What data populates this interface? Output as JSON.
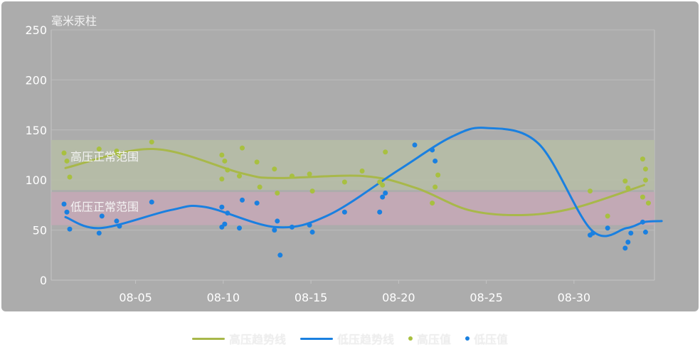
{
  "chart_data": {
    "type": "scatter",
    "ylabel": "毫米汞柱",
    "ylim": [
      0,
      250
    ],
    "yticks": [
      0,
      50,
      100,
      150,
      200,
      250
    ],
    "x_range": [
      "08-01",
      "09-04"
    ],
    "xticks": [
      "08-05",
      "08-10",
      "08-15",
      "08-20",
      "08-25",
      "08-30"
    ],
    "bands": [
      {
        "label": "高压正常范围",
        "from": 90,
        "to": 140,
        "color": "#b6bda6"
      },
      {
        "label": "低压正常范围",
        "from": 55,
        "to": 88,
        "color": "#c6a8b6"
      }
    ],
    "trend_lines": [
      {
        "name": "高压趋势线",
        "color": "#a8b84a",
        "points": [
          [
            "08-01",
            112
          ],
          [
            "08-06",
            131
          ],
          [
            "08-11",
            107
          ],
          [
            "08-13",
            102
          ],
          [
            "08-18",
            104
          ],
          [
            "08-21",
            92
          ],
          [
            "08-24",
            70
          ],
          [
            "08-27",
            65
          ],
          [
            "08-30",
            72
          ],
          [
            "09-03",
            95
          ]
        ]
      },
      {
        "name": "低压趋势线",
        "color": "#1a80e0",
        "points": [
          [
            "08-01",
            63
          ],
          [
            "08-03",
            52
          ],
          [
            "08-07",
            70
          ],
          [
            "08-09",
            73
          ],
          [
            "08-13",
            53
          ],
          [
            "08-16",
            65
          ],
          [
            "08-20",
            110
          ],
          [
            "08-23",
            143
          ],
          [
            "08-25",
            152
          ],
          [
            "08-28",
            136
          ],
          [
            "08-31",
            50
          ],
          [
            "09-02",
            52
          ],
          [
            "09-03",
            58
          ],
          [
            "09-04",
            59
          ]
        ]
      }
    ],
    "series": [
      {
        "name": "高压值",
        "color": "#a8c040",
        "points": [
          [
            "08-01",
            127
          ],
          [
            "08-01",
            119
          ],
          [
            "08-01",
            103
          ],
          [
            "08-03",
            131
          ],
          [
            "08-04",
            129
          ],
          [
            "08-04",
            124
          ],
          [
            "08-06",
            138
          ],
          [
            "08-10",
            125
          ],
          [
            "08-10",
            119
          ],
          [
            "08-10",
            110
          ],
          [
            "08-10",
            101
          ],
          [
            "08-11",
            104
          ],
          [
            "08-11",
            132
          ],
          [
            "08-12",
            118
          ],
          [
            "08-12",
            93
          ],
          [
            "08-13",
            111
          ],
          [
            "08-13",
            87
          ],
          [
            "08-14",
            104
          ],
          [
            "08-15",
            106
          ],
          [
            "08-15",
            89
          ],
          [
            "08-17",
            98
          ],
          [
            "08-18",
            109
          ],
          [
            "08-19",
            98
          ],
          [
            "08-19",
            95
          ],
          [
            "08-19",
            128
          ],
          [
            "08-22",
            77
          ],
          [
            "08-22",
            93
          ],
          [
            "08-22",
            105
          ],
          [
            "08-31",
            89
          ],
          [
            "09-01",
            64
          ],
          [
            "09-02",
            99
          ],
          [
            "09-02",
            92
          ],
          [
            "09-03",
            121
          ],
          [
            "09-03",
            111
          ],
          [
            "09-03",
            77
          ],
          [
            "09-03",
            83
          ],
          [
            "09-03",
            100
          ]
        ]
      },
      {
        "name": "低压值",
        "color": "#1a80e0",
        "points": [
          [
            "08-01",
            76
          ],
          [
            "08-01",
            68
          ],
          [
            "08-01",
            51
          ],
          [
            "08-03",
            47
          ],
          [
            "08-03",
            64
          ],
          [
            "08-04",
            59
          ],
          [
            "08-04",
            54
          ],
          [
            "08-06",
            78
          ],
          [
            "08-10",
            73
          ],
          [
            "08-10",
            56
          ],
          [
            "08-10",
            67
          ],
          [
            "08-10",
            53
          ],
          [
            "08-11",
            52
          ],
          [
            "08-11",
            80
          ],
          [
            "08-12",
            77
          ],
          [
            "08-13",
            50
          ],
          [
            "08-13",
            59
          ],
          [
            "08-13",
            25
          ],
          [
            "08-14",
            53
          ],
          [
            "08-15",
            55
          ],
          [
            "08-15",
            48
          ],
          [
            "08-17",
            68
          ],
          [
            "08-19",
            68
          ],
          [
            "08-19",
            83
          ],
          [
            "08-19",
            87
          ],
          [
            "08-21",
            135
          ],
          [
            "08-22",
            130
          ],
          [
            "08-22",
            119
          ],
          [
            "08-31",
            45
          ],
          [
            "08-31",
            47
          ],
          [
            "09-01",
            52
          ],
          [
            "09-02",
            32
          ],
          [
            "09-02",
            38
          ],
          [
            "09-02",
            47
          ],
          [
            "09-03",
            58
          ],
          [
            "09-03",
            48
          ]
        ]
      }
    ],
    "legend": {
      "position": "bottom-center",
      "items": [
        "高压趋势线",
        "低压趋势线",
        "高压值",
        "低压值"
      ]
    }
  }
}
